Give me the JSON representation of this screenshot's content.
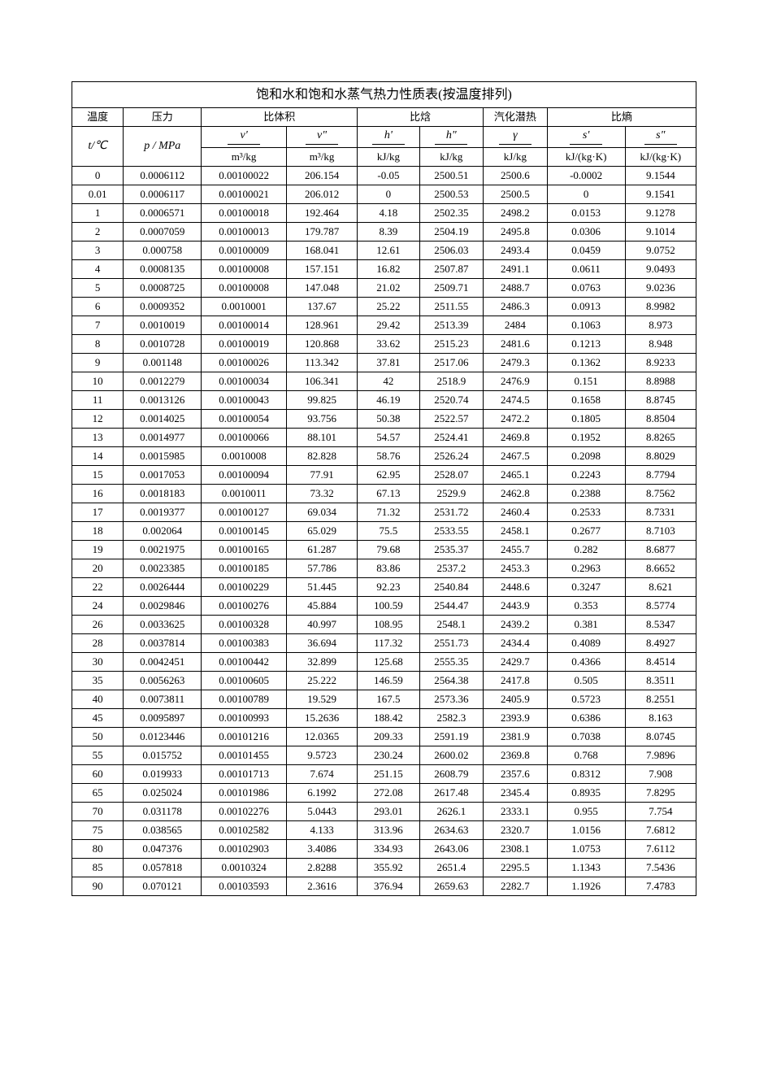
{
  "title": "饱和水和饱和水蒸气热力性质表(按温度排列)",
  "group_headers": {
    "temp": "温度",
    "pressure": "压力",
    "spec_vol": "比体积",
    "enthalpy": "比焓",
    "latent": "汽化潜热",
    "entropy": "比熵"
  },
  "unit_row": {
    "temp_sym": "t/℃",
    "p_sym": "p / MPa",
    "vp_sym": "v'",
    "vpp_sym": "v\"",
    "hp_sym": "h'",
    "hpp_sym": "h\"",
    "gamma_sym": "γ",
    "sp_sym": "s'",
    "spp_sym": "s\"",
    "v_unit": "m³/kg",
    "h_unit": "kJ/kg",
    "gamma_unit": "kJ/kg",
    "s_unit": "kJ/(kg·K)"
  },
  "rows": [
    [
      "0",
      "0.0006112",
      "0.00100022",
      "206.154",
      "-0.05",
      "2500.51",
      "2500.6",
      "-0.0002",
      "9.1544"
    ],
    [
      "0.01",
      "0.0006117",
      "0.00100021",
      "206.012",
      "0",
      "2500.53",
      "2500.5",
      "0",
      "9.1541"
    ],
    [
      "1",
      "0.0006571",
      "0.00100018",
      "192.464",
      "4.18",
      "2502.35",
      "2498.2",
      "0.0153",
      "9.1278"
    ],
    [
      "2",
      "0.0007059",
      "0.00100013",
      "179.787",
      "8.39",
      "2504.19",
      "2495.8",
      "0.0306",
      "9.1014"
    ],
    [
      "3",
      "0.000758",
      "0.00100009",
      "168.041",
      "12.61",
      "2506.03",
      "2493.4",
      "0.0459",
      "9.0752"
    ],
    [
      "4",
      "0.0008135",
      "0.00100008",
      "157.151",
      "16.82",
      "2507.87",
      "2491.1",
      "0.0611",
      "9.0493"
    ],
    [
      "5",
      "0.0008725",
      "0.00100008",
      "147.048",
      "21.02",
      "2509.71",
      "2488.7",
      "0.0763",
      "9.0236"
    ],
    [
      "6",
      "0.0009352",
      "0.0010001",
      "137.67",
      "25.22",
      "2511.55",
      "2486.3",
      "0.0913",
      "8.9982"
    ],
    [
      "7",
      "0.0010019",
      "0.00100014",
      "128.961",
      "29.42",
      "2513.39",
      "2484",
      "0.1063",
      "8.973"
    ],
    [
      "8",
      "0.0010728",
      "0.00100019",
      "120.868",
      "33.62",
      "2515.23",
      "2481.6",
      "0.1213",
      "8.948"
    ],
    [
      "9",
      "0.001148",
      "0.00100026",
      "113.342",
      "37.81",
      "2517.06",
      "2479.3",
      "0.1362",
      "8.9233"
    ],
    [
      "10",
      "0.0012279",
      "0.00100034",
      "106.341",
      "42",
      "2518.9",
      "2476.9",
      "0.151",
      "8.8988"
    ],
    [
      "11",
      "0.0013126",
      "0.00100043",
      "99.825",
      "46.19",
      "2520.74",
      "2474.5",
      "0.1658",
      "8.8745"
    ],
    [
      "12",
      "0.0014025",
      "0.00100054",
      "93.756",
      "50.38",
      "2522.57",
      "2472.2",
      "0.1805",
      "8.8504"
    ],
    [
      "13",
      "0.0014977",
      "0.00100066",
      "88.101",
      "54.57",
      "2524.41",
      "2469.8",
      "0.1952",
      "8.8265"
    ],
    [
      "14",
      "0.0015985",
      "0.0010008",
      "82.828",
      "58.76",
      "2526.24",
      "2467.5",
      "0.2098",
      "8.8029"
    ],
    [
      "15",
      "0.0017053",
      "0.00100094",
      "77.91",
      "62.95",
      "2528.07",
      "2465.1",
      "0.2243",
      "8.7794"
    ],
    [
      "16",
      "0.0018183",
      "0.0010011",
      "73.32",
      "67.13",
      "2529.9",
      "2462.8",
      "0.2388",
      "8.7562"
    ],
    [
      "17",
      "0.0019377",
      "0.00100127",
      "69.034",
      "71.32",
      "2531.72",
      "2460.4",
      "0.2533",
      "8.7331"
    ],
    [
      "18",
      "0.002064",
      "0.00100145",
      "65.029",
      "75.5",
      "2533.55",
      "2458.1",
      "0.2677",
      "8.7103"
    ],
    [
      "19",
      "0.0021975",
      "0.00100165",
      "61.287",
      "79.68",
      "2535.37",
      "2455.7",
      "0.282",
      "8.6877"
    ],
    [
      "20",
      "0.0023385",
      "0.00100185",
      "57.786",
      "83.86",
      "2537.2",
      "2453.3",
      "0.2963",
      "8.6652"
    ],
    [
      "22",
      "0.0026444",
      "0.00100229",
      "51.445",
      "92.23",
      "2540.84",
      "2448.6",
      "0.3247",
      "8.621"
    ],
    [
      "24",
      "0.0029846",
      "0.00100276",
      "45.884",
      "100.59",
      "2544.47",
      "2443.9",
      "0.353",
      "8.5774"
    ],
    [
      "26",
      "0.0033625",
      "0.00100328",
      "40.997",
      "108.95",
      "2548.1",
      "2439.2",
      "0.381",
      "8.5347"
    ],
    [
      "28",
      "0.0037814",
      "0.00100383",
      "36.694",
      "117.32",
      "2551.73",
      "2434.4",
      "0.4089",
      "8.4927"
    ],
    [
      "30",
      "0.0042451",
      "0.00100442",
      "32.899",
      "125.68",
      "2555.35",
      "2429.7",
      "0.4366",
      "8.4514"
    ],
    [
      "35",
      "0.0056263",
      "0.00100605",
      "25.222",
      "146.59",
      "2564.38",
      "2417.8",
      "0.505",
      "8.3511"
    ],
    [
      "40",
      "0.0073811",
      "0.00100789",
      "19.529",
      "167.5",
      "2573.36",
      "2405.9",
      "0.5723",
      "8.2551"
    ],
    [
      "45",
      "0.0095897",
      "0.00100993",
      "15.2636",
      "188.42",
      "2582.3",
      "2393.9",
      "0.6386",
      "8.163"
    ],
    [
      "50",
      "0.0123446",
      "0.00101216",
      "12.0365",
      "209.33",
      "2591.19",
      "2381.9",
      "0.7038",
      "8.0745"
    ],
    [
      "55",
      "0.015752",
      "0.00101455",
      "9.5723",
      "230.24",
      "2600.02",
      "2369.8",
      "0.768",
      "7.9896"
    ],
    [
      "60",
      "0.019933",
      "0.00101713",
      "7.674",
      "251.15",
      "2608.79",
      "2357.6",
      "0.8312",
      "7.908"
    ],
    [
      "65",
      "0.025024",
      "0.00101986",
      "6.1992",
      "272.08",
      "2617.48",
      "2345.4",
      "0.8935",
      "7.8295"
    ],
    [
      "70",
      "0.031178",
      "0.00102276",
      "5.0443",
      "293.01",
      "2626.1",
      "2333.1",
      "0.955",
      "7.754"
    ],
    [
      "75",
      "0.038565",
      "0.00102582",
      "4.133",
      "313.96",
      "2634.63",
      "2320.7",
      "1.0156",
      "7.6812"
    ],
    [
      "80",
      "0.047376",
      "0.00102903",
      "3.4086",
      "334.93",
      "2643.06",
      "2308.1",
      "1.0753",
      "7.6112"
    ],
    [
      "85",
      "0.057818",
      "0.0010324",
      "2.8288",
      "355.92",
      "2651.4",
      "2295.5",
      "1.1343",
      "7.5436"
    ],
    [
      "90",
      "0.070121",
      "0.00103593",
      "2.3616",
      "376.94",
      "2659.63",
      "2282.7",
      "1.1926",
      "7.4783"
    ]
  ],
  "styling": {
    "border_color": "#000000",
    "background_color": "#ffffff",
    "text_color": "#000000",
    "title_fontsize": 16,
    "header_fontsize": 14,
    "body_fontsize": 13,
    "font_family_cjk": "SimSun",
    "font_family_latin": "Times New Roman"
  }
}
